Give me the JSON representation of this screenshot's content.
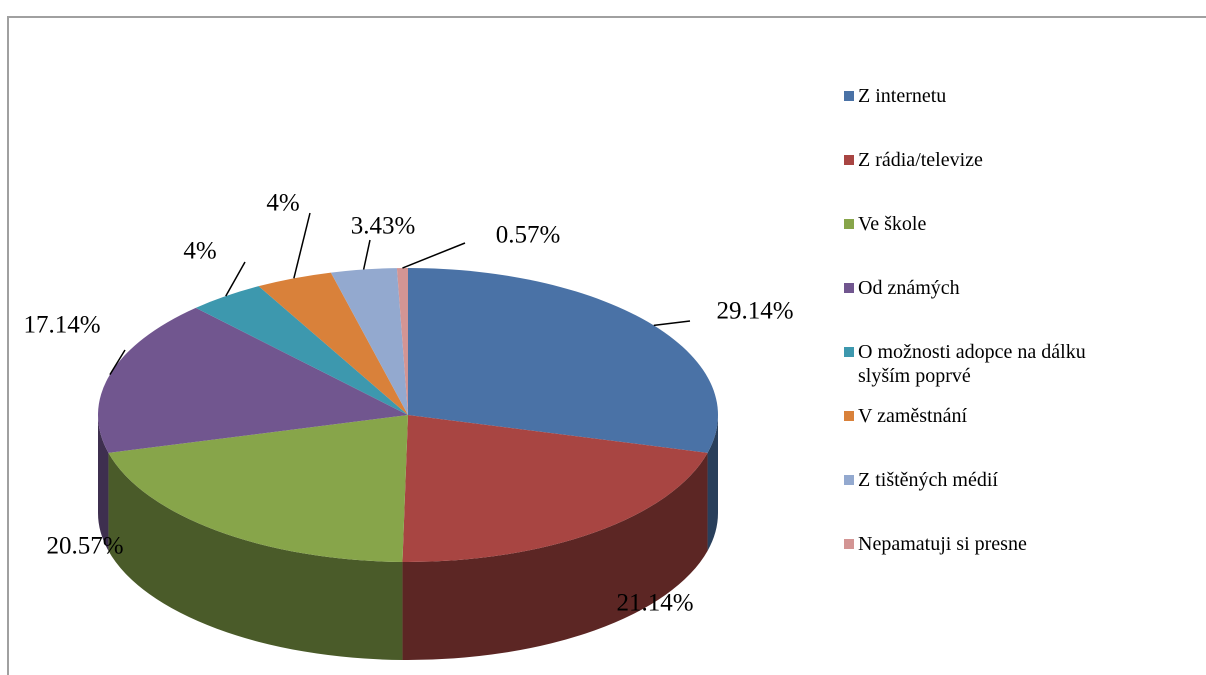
{
  "chart_data": {
    "type": "pie",
    "categories": [
      "Z internetu",
      "Z rádia/televize",
      "Ve škole",
      "Od známých",
      "O možnosti adopce na dálku slyším poprvé",
      "V zaměstnání",
      "Z tištěných médií",
      "Nepamatuji si presne"
    ],
    "values": [
      29.14,
      21.14,
      20.57,
      17.14,
      4,
      4,
      3.43,
      0.57
    ],
    "value_labels": [
      "29.14%",
      "21.14%",
      "20.57%",
      "17.14%",
      "4%",
      "4%",
      "3.43%",
      "0.57%"
    ],
    "colors": [
      "#4a72a6",
      "#a84542",
      "#87a54a",
      "#71568f",
      "#3d98ae",
      "#d9813a",
      "#93a9cf",
      "#d39594"
    ],
    "legend": "right"
  }
}
